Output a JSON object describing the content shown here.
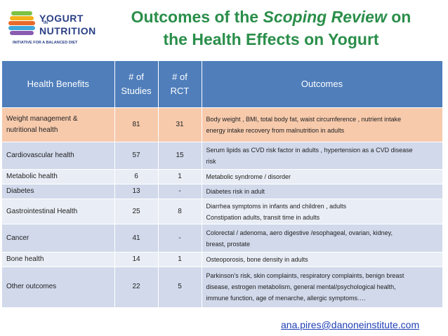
{
  "logo": {
    "line1": "YOGURT",
    "line2": "IN",
    "line3": "NUTRITION",
    "tagline": "INITIATIVE FOR A BALANCED DIET"
  },
  "title": {
    "prefix": "Outcomes of the ",
    "emphasis": "Scoping Review",
    "suffix": " on",
    "line2": "the Health Effects on Yogurt"
  },
  "table": {
    "headers": {
      "benefit": "Health Benefits",
      "studies_1": "# of",
      "studies_2": "Studies",
      "rct_1": "# of",
      "rct_2": "RCT",
      "outcomes": "Outcomes"
    },
    "rows": [
      {
        "benefit": "Weight management & nutritional health",
        "studies": "81",
        "rct": "31",
        "outcomes": [
          "Body weight , BMI, total body fat, waist circumference , nutrient intake",
          "energy intake recovery from malnutrition in adults"
        ]
      },
      {
        "benefit": "Cardiovascular health",
        "studies": "57",
        "rct": "15",
        "outcomes": [
          "Serum lipids as CVD risk factor in adults , hypertension as a CVD disease",
          "risk"
        ]
      },
      {
        "benefit": "Metabolic health",
        "studies": "6",
        "rct": "1",
        "outcomes": [
          "Metabolic syndrome / disorder"
        ]
      },
      {
        "benefit": "Diabetes",
        "studies": "13",
        "rct": "-",
        "outcomes": [
          "Diabetes risk in adult"
        ]
      },
      {
        "benefit": "Gastrointestinal Health",
        "studies": "25",
        "rct": "8",
        "outcomes": [
          "Diarrhea symptoms in infants and children , adults",
          "Constipation adults, transit time in adults"
        ]
      },
      {
        "benefit": "Cancer",
        "studies": "41",
        "rct": "-",
        "outcomes": [
          "Colorectal / adenoma, aero digestive /esophageal, ovarian, kidney,",
          "breast, prostate"
        ]
      },
      {
        "benefit": "Bone health",
        "studies": "14",
        "rct": "1",
        "outcomes": [
          "Osteoporosis, bone density in adults"
        ]
      },
      {
        "benefit": "Other outcomes",
        "studies": "22",
        "rct": "5",
        "outcomes": [
          "Parkinson's risk, skin complaints, respiratory complaints, benign breast",
          "disease, estrogen metabolism, general mental/psychological health,",
          "immune function, age of menarche, allergic symptoms…."
        ]
      }
    ]
  },
  "contact": {
    "email": "ana.pires@danoneinstitute.com"
  }
}
